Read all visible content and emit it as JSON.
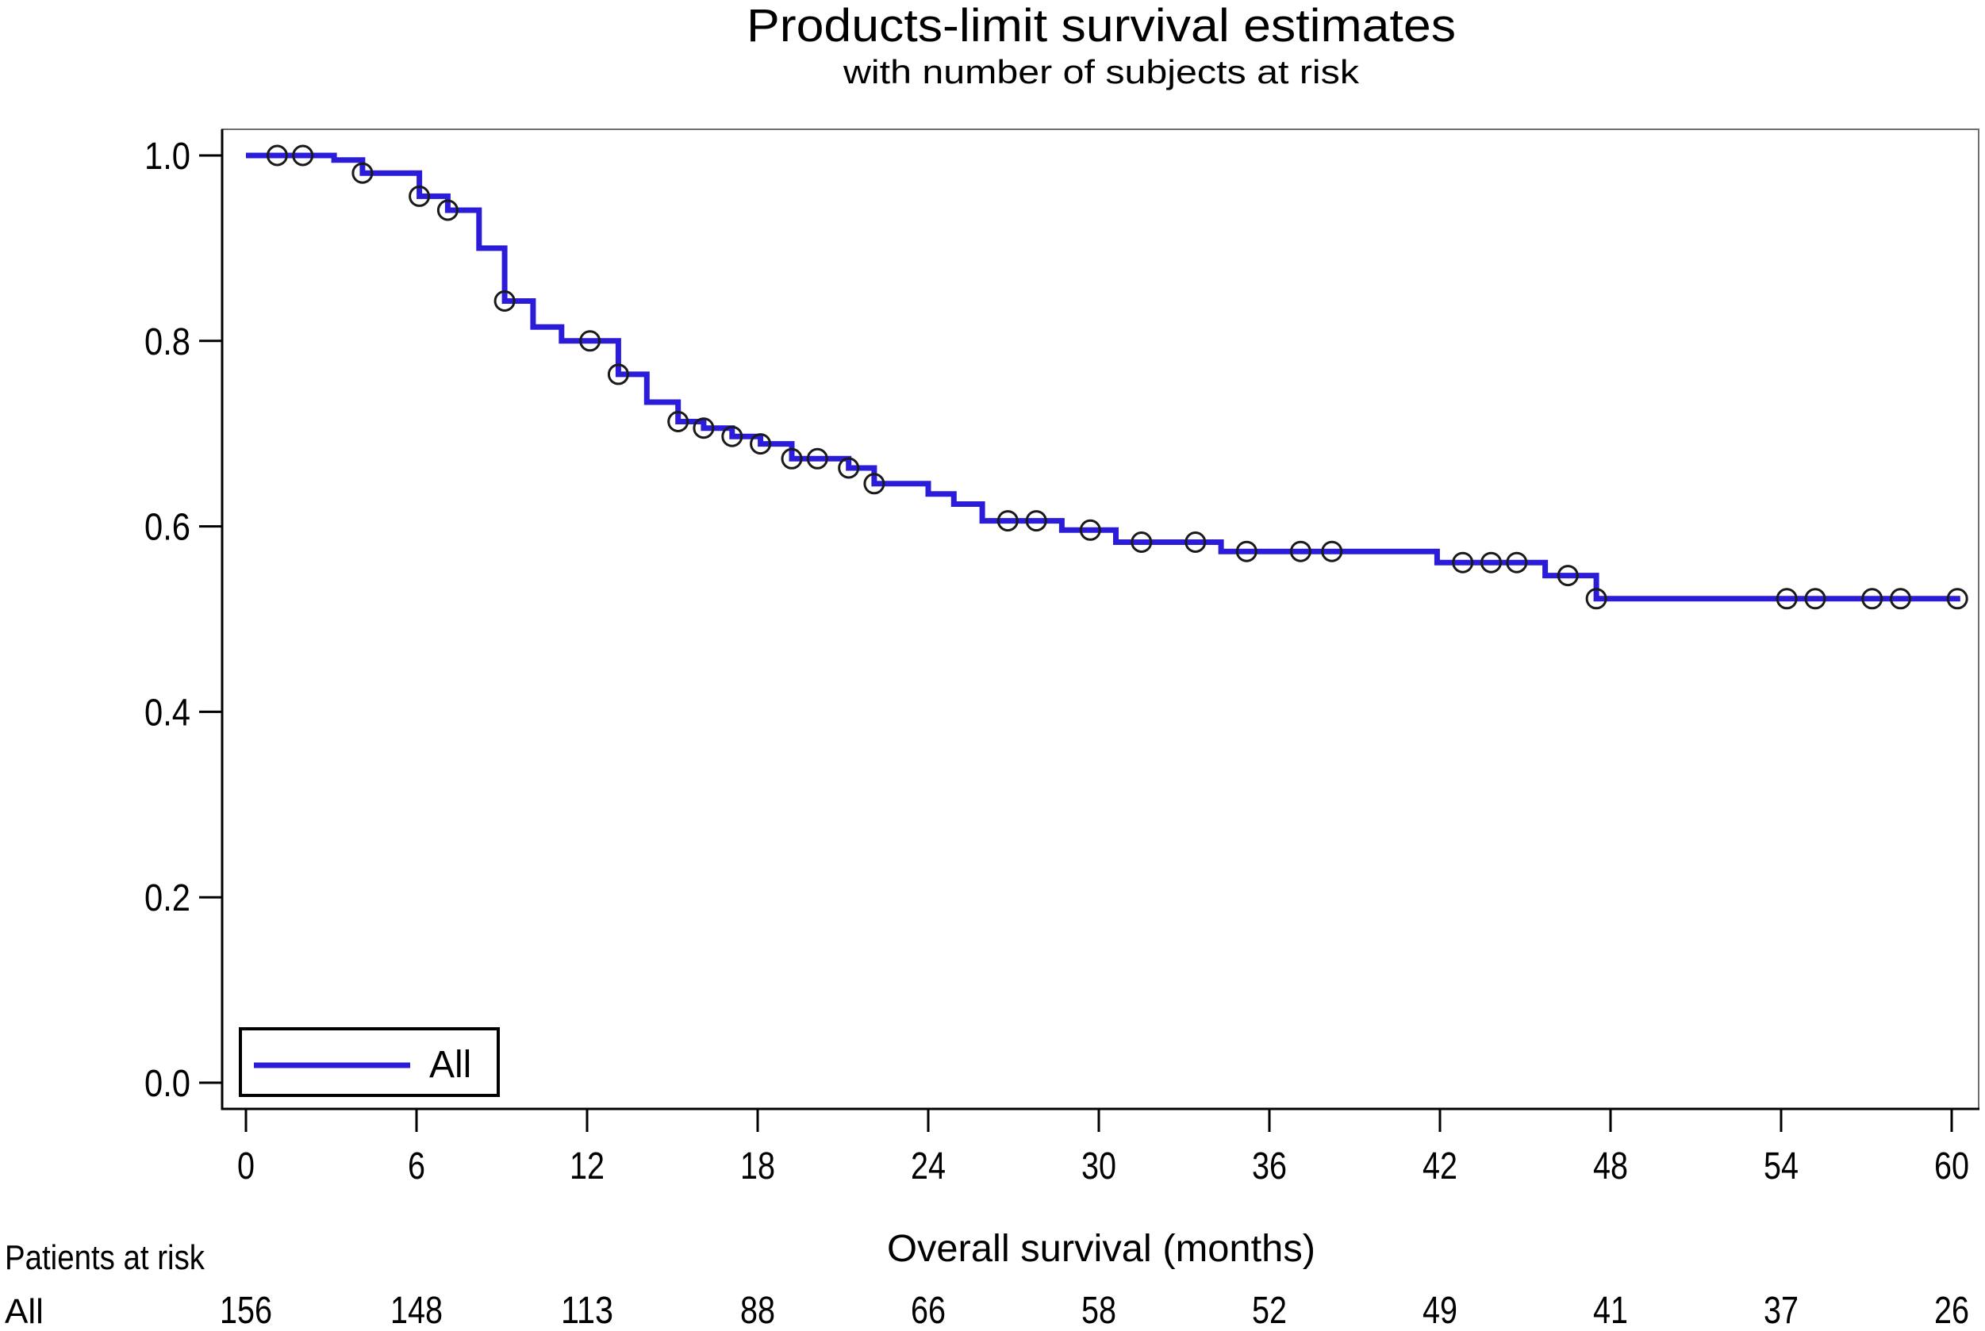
{
  "title": "Products-limit survival estimates",
  "subtitle": "with number of subjects at risk",
  "x_axis": {
    "label": "Overall survival (months)",
    "tick_labels": [
      "0",
      "6",
      "12",
      "18",
      "24",
      "30",
      "36",
      "42",
      "48",
      "54",
      "60"
    ]
  },
  "y_axis": {
    "tick_labels": [
      "1.0",
      "0.8",
      "0.6",
      "0.4",
      "0.2",
      "0.0"
    ]
  },
  "legend": {
    "label": "All",
    "line_color": "#2a1cd8"
  },
  "at_risk_table": {
    "header": "Patients at risk",
    "row_label": "All",
    "counts": [
      "156",
      "148",
      "113",
      "88",
      "66",
      "58",
      "52",
      "49",
      "41",
      "37",
      "26"
    ]
  },
  "chart_data": {
    "type": "line",
    "subtype": "kaplan-meier-step",
    "title": "Products-limit survival estimates",
    "subtitle": "with number of subjects at risk",
    "xlabel": "Overall survival (months)",
    "ylabel": "",
    "xlim": [
      0,
      60
    ],
    "ylim": [
      0.0,
      1.0
    ],
    "x_ticks": [
      0,
      6,
      12,
      18,
      24,
      30,
      36,
      42,
      48,
      54,
      60
    ],
    "y_ticks": [
      1.0,
      0.8,
      0.6,
      0.4,
      0.2,
      0.0
    ],
    "grid": false,
    "legend_position": "inside-bottom-left",
    "series": [
      {
        "name": "All",
        "color": "#2a1cd8",
        "steps": [
          [
            0.0,
            1.0
          ],
          [
            3.1,
            0.995
          ],
          [
            4.1,
            0.981
          ],
          [
            6.1,
            0.956
          ],
          [
            7.1,
            0.941
          ],
          [
            8.2,
            0.9
          ],
          [
            9.1,
            0.843
          ],
          [
            10.1,
            0.815
          ],
          [
            11.1,
            0.8
          ],
          [
            13.1,
            0.764
          ],
          [
            14.1,
            0.734
          ],
          [
            15.2,
            0.713
          ],
          [
            16.1,
            0.706
          ],
          [
            17.1,
            0.697
          ],
          [
            18.1,
            0.689
          ],
          [
            19.2,
            0.673
          ],
          [
            21.2,
            0.663
          ],
          [
            22.1,
            0.646
          ],
          [
            24.0,
            0.635
          ],
          [
            24.9,
            0.624
          ],
          [
            25.9,
            0.606
          ],
          [
            28.7,
            0.596
          ],
          [
            30.6,
            0.583
          ],
          [
            34.3,
            0.573
          ],
          [
            41.9,
            0.561
          ],
          [
            45.7,
            0.547
          ],
          [
            47.5,
            0.522
          ]
        ],
        "end_time": 60.3,
        "censored": [
          [
            1.1,
            1.0
          ],
          [
            2.0,
            1.0
          ],
          [
            4.1,
            0.981
          ],
          [
            6.1,
            0.956
          ],
          [
            7.1,
            0.941
          ],
          [
            9.1,
            0.843
          ],
          [
            12.1,
            0.8
          ],
          [
            13.1,
            0.764
          ],
          [
            15.2,
            0.713
          ],
          [
            16.1,
            0.706
          ],
          [
            17.1,
            0.697
          ],
          [
            18.1,
            0.689
          ],
          [
            19.2,
            0.673
          ],
          [
            20.1,
            0.673
          ],
          [
            21.2,
            0.663
          ],
          [
            22.1,
            0.646
          ],
          [
            26.8,
            0.606
          ],
          [
            27.8,
            0.606
          ],
          [
            29.7,
            0.596
          ],
          [
            31.5,
            0.583
          ],
          [
            33.4,
            0.583
          ],
          [
            35.2,
            0.573
          ],
          [
            37.1,
            0.573
          ],
          [
            38.2,
            0.573
          ],
          [
            42.8,
            0.561
          ],
          [
            43.8,
            0.561
          ],
          [
            44.7,
            0.561
          ],
          [
            46.5,
            0.547
          ],
          [
            47.5,
            0.522
          ],
          [
            54.2,
            0.522
          ],
          [
            55.2,
            0.522
          ],
          [
            57.2,
            0.522
          ],
          [
            58.2,
            0.522
          ],
          [
            60.2,
            0.522
          ]
        ]
      }
    ],
    "at_risk": {
      "header": "Patients at risk",
      "rows": [
        {
          "label": "All",
          "times": [
            0,
            6,
            12,
            18,
            24,
            30,
            36,
            42,
            48,
            54,
            60
          ],
          "counts": [
            156,
            148,
            113,
            88,
            66,
            58,
            52,
            49,
            41,
            37,
            26
          ]
        }
      ]
    }
  }
}
